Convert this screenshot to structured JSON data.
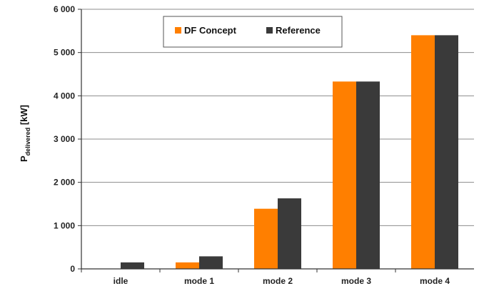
{
  "chart_data": {
    "type": "bar",
    "categories": [
      "idle",
      "mode 1",
      "mode 2",
      "mode 3",
      "mode 4"
    ],
    "series": [
      {
        "name": "DF Concept",
        "color": "#ff7f00",
        "values": [
          0,
          150,
          1390,
          4330,
          5400
        ]
      },
      {
        "name": "Reference",
        "color": "#3a3a3a",
        "values": [
          150,
          290,
          1630,
          4330,
          5400
        ]
      }
    ],
    "ylabel": {
      "main": "P",
      "subscript": "delivered",
      "unit": " [kW]"
    },
    "ylim": [
      0,
      6000
    ],
    "yticks": [
      0,
      1000,
      2000,
      3000,
      4000,
      5000,
      6000
    ],
    "ytick_labels": [
      "0",
      "1 000",
      "2 000",
      "3 000",
      "4 000",
      "5 000",
      "6 000"
    ],
    "grid": true,
    "legend_position": "top-center"
  }
}
